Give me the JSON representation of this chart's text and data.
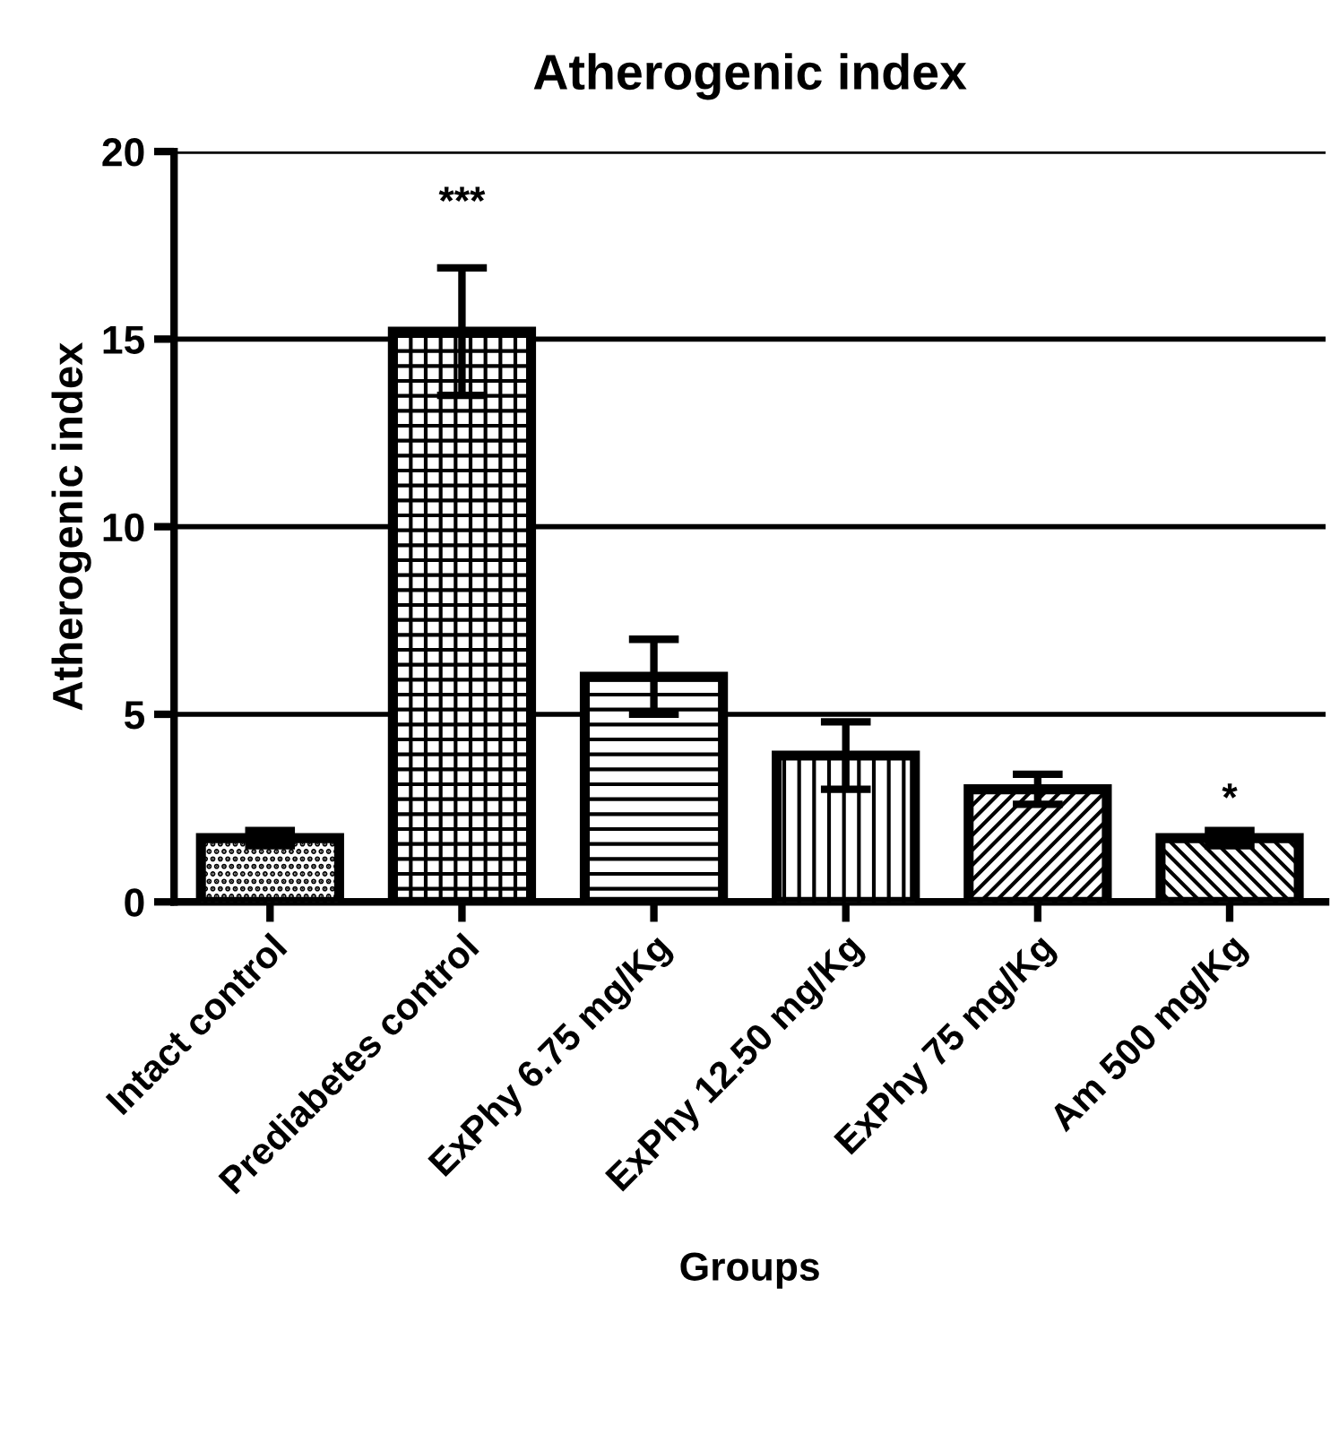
{
  "chart_data": {
    "type": "bar",
    "title": "Atherogenic index",
    "xlabel": "Groups",
    "ylabel": "Atherogenic index",
    "categories": [
      "Intact control",
      "Prediabetes control",
      "ExPhy 6.75 mg/Kg",
      "ExPhy 12.50 mg/Kg",
      "ExPhy 75 mg/Kg",
      "Am 500 mg/Kg"
    ],
    "values": [
      1.7,
      15.2,
      6.0,
      3.9,
      3.0,
      1.7
    ],
    "errors": [
      0.2,
      1.7,
      1.0,
      0.9,
      0.4,
      0.2
    ],
    "color": "#000000",
    "ylim": [
      0,
      20
    ],
    "yticks": [
      0,
      5,
      10,
      15,
      20
    ],
    "grid": "y",
    "legend": false,
    "annotations": [
      "***",
      "*"
    ]
  }
}
